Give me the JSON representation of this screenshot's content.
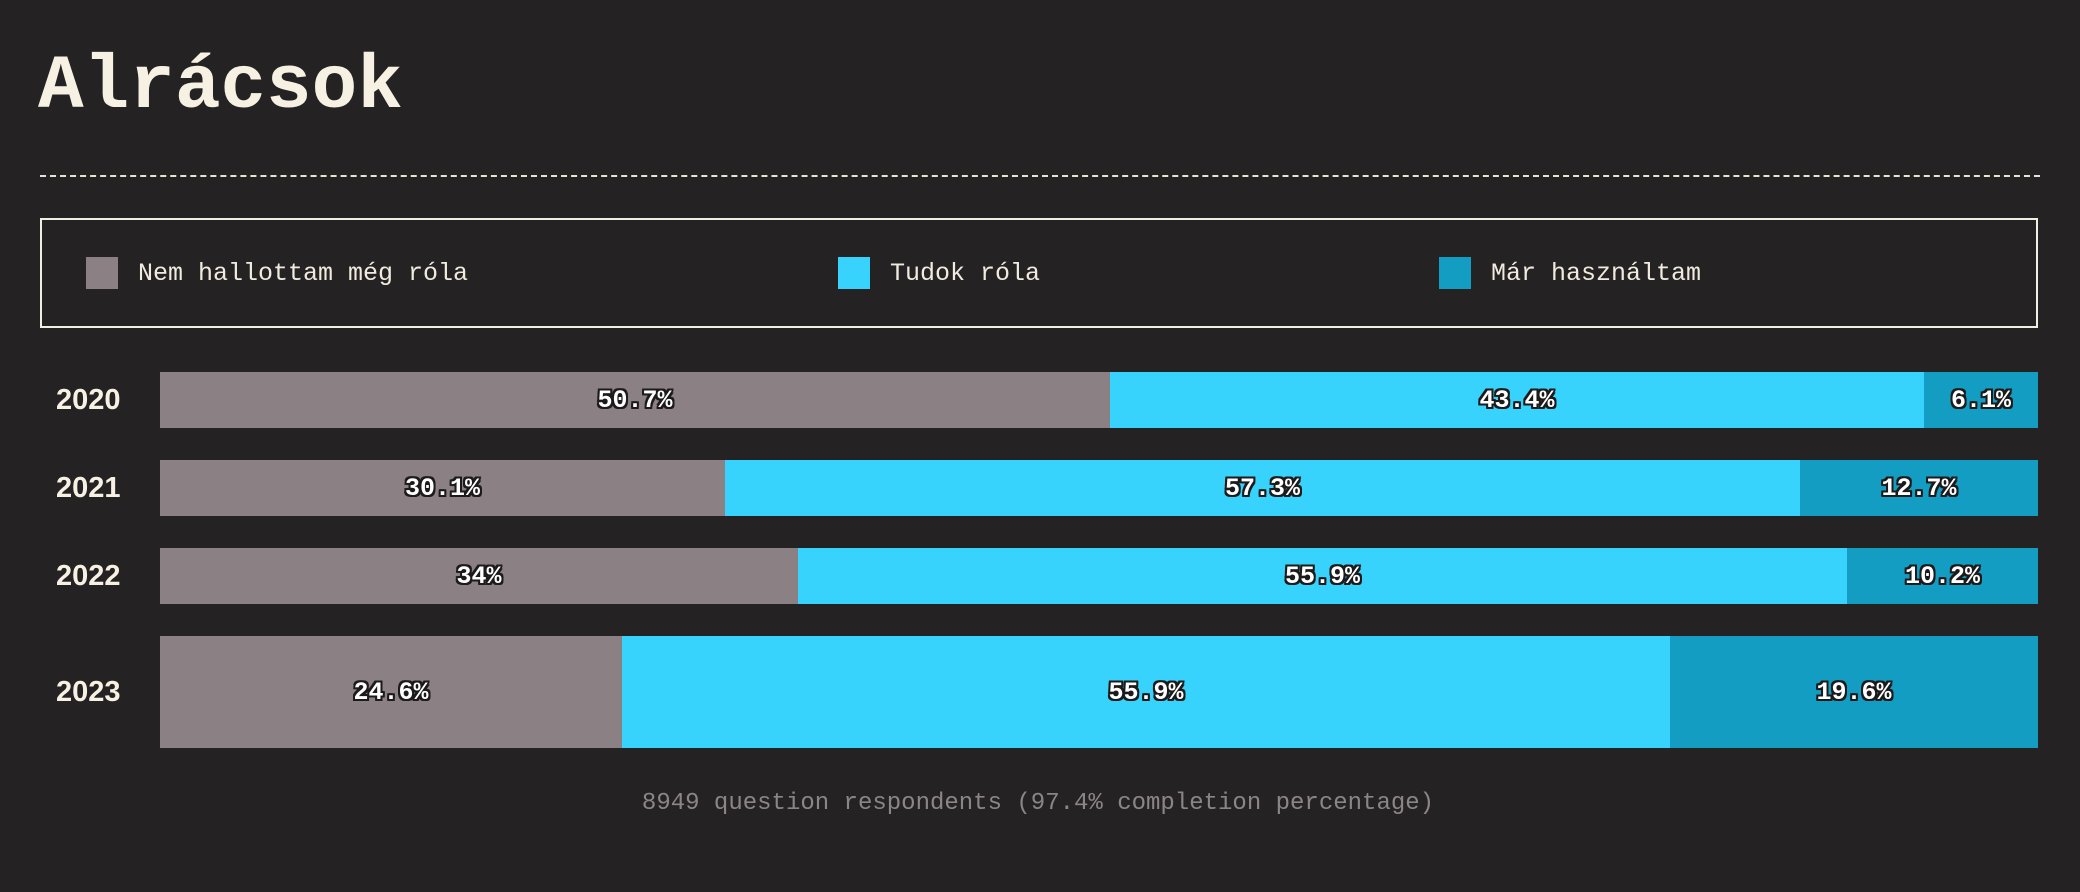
{
  "title": "Alrácsok",
  "footer": "8949 question respondents (97.4% completion percentage)",
  "chart_data": {
    "type": "bar",
    "orientation": "horizontal",
    "stacked": true,
    "percent_stacked": true,
    "title": "Alrácsok",
    "categories": [
      "2020",
      "2021",
      "2022",
      "2023"
    ],
    "series": [
      {
        "name": "Nem hallottam még róla",
        "color": "#8b8185",
        "values": [
          50.7,
          30.1,
          34,
          24.6
        ],
        "labels": [
          "50.7%",
          "30.1%",
          "34%",
          "24.6%"
        ]
      },
      {
        "name": "Tudok róla",
        "color": "#38d3fd",
        "values": [
          43.4,
          57.3,
          55.9,
          55.9
        ],
        "labels": [
          "43.4%",
          "57.3%",
          "55.9%",
          "55.9%"
        ]
      },
      {
        "name": "Már használtam",
        "color": "#139dc3",
        "values": [
          6.1,
          12.7,
          10.2,
          19.6
        ],
        "labels": [
          "6.1%",
          "12.7%",
          "10.2%",
          "19.6%"
        ]
      }
    ],
    "xlim": [
      0,
      100
    ],
    "grid": false,
    "legend_position": "top"
  }
}
